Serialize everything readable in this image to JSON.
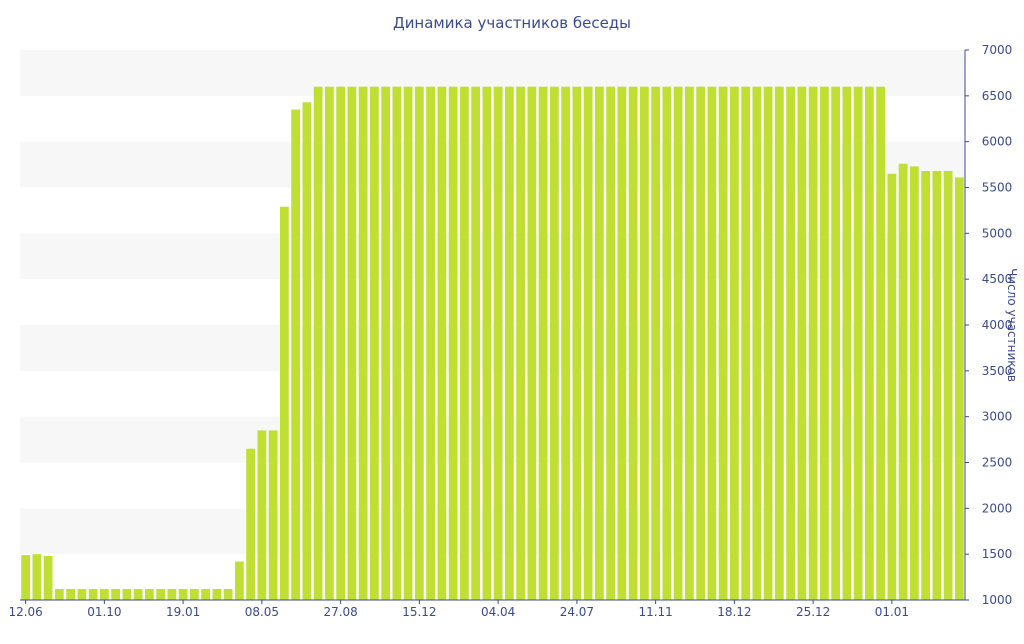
{
  "chart_data": {
    "type": "bar",
    "title": "Динамика участников беседы",
    "ylabel": "Число участников",
    "xlabel": "",
    "ylim": [
      1000,
      7000
    ],
    "y_ticks": [
      1000,
      1500,
      2000,
      2500,
      3000,
      3500,
      4000,
      4500,
      5000,
      5500,
      6000,
      6500,
      7000
    ],
    "x_tick_labels": [
      {
        "index": 0,
        "label": "12.06"
      },
      {
        "index": 7,
        "label": "01.10"
      },
      {
        "index": 14,
        "label": "19.01"
      },
      {
        "index": 21,
        "label": "08.05"
      },
      {
        "index": 28,
        "label": "27.08"
      },
      {
        "index": 35,
        "label": "15.12"
      },
      {
        "index": 42,
        "label": "04.04"
      },
      {
        "index": 49,
        "label": "24.07"
      },
      {
        "index": 56,
        "label": "11.11"
      },
      {
        "index": 63,
        "label": "18.12"
      },
      {
        "index": 70,
        "label": "25.12"
      },
      {
        "index": 77,
        "label": "01.01"
      }
    ],
    "grid": "alternating horizontal bands",
    "y_axis_side": "right",
    "values": [
      1490,
      1500,
      1480,
      1120,
      1120,
      1120,
      1120,
      1120,
      1120,
      1120,
      1120,
      1120,
      1120,
      1120,
      1120,
      1120,
      1120,
      1120,
      1120,
      1420,
      2650,
      2850,
      2850,
      5290,
      6350,
      6430,
      6600,
      6600,
      6600,
      6600,
      6600,
      6600,
      6600,
      6600,
      6600,
      6600,
      6600,
      6600,
      6600,
      6600,
      6600,
      6600,
      6600,
      6600,
      6600,
      6600,
      6600,
      6600,
      6600,
      6600,
      6600,
      6600,
      6600,
      6600,
      6600,
      6600,
      6600,
      6600,
      6600,
      6600,
      6600,
      6600,
      6600,
      6600,
      6600,
      6600,
      6600,
      6600,
      6600,
      6600,
      6600,
      6600,
      6600,
      6600,
      6600,
      6600,
      6600,
      5650,
      5760,
      5730,
      5680,
      5680,
      5680,
      5610
    ]
  },
  "colors": {
    "bar": "#bfe033",
    "band": "#f7f7f7",
    "axis": "#3b4a8c",
    "text": "#3b4a8c"
  }
}
